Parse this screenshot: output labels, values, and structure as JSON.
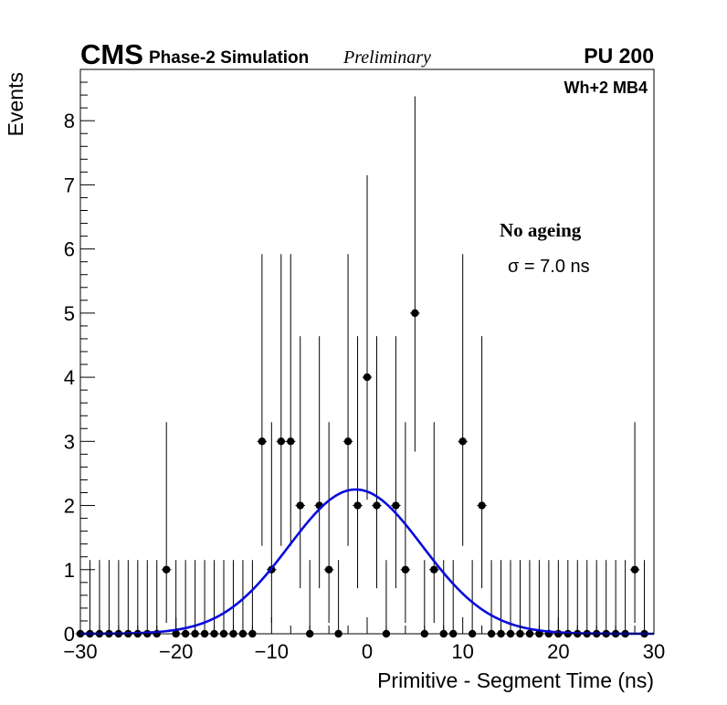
{
  "header": {
    "experiment": "CMS",
    "simulation": "Phase-2 Simulation",
    "status": "Preliminary",
    "pileup": "PU 200"
  },
  "annotations": {
    "chamber": "Wh+2 MB4",
    "condition": "No ageing",
    "sigma": "σ = 7.0 ns"
  },
  "colors": {
    "fit": "#0a0adc",
    "markers": "#000000",
    "axes": "#000000"
  },
  "chart_data": {
    "type": "scatter",
    "xlabel": "Primitive - Segment Time (ns)",
    "ylabel": "Events",
    "xlim": [
      -30,
      30
    ],
    "ylim": [
      0,
      8.8
    ],
    "x_ticks": [
      -30,
      -20,
      -10,
      0,
      10,
      20,
      30
    ],
    "x_tick_labels": [
      "−30",
      "−20",
      "−10",
      "0",
      "10",
      "20",
      "30"
    ],
    "y_ticks": [
      0,
      1,
      2,
      3,
      4,
      5,
      6,
      7,
      8
    ],
    "y_tick_labels": [
      "0",
      "1",
      "2",
      "3",
      "4",
      "5",
      "6",
      "7",
      "8"
    ],
    "grid": false,
    "bin_width": 1,
    "series": [
      {
        "type": "histogram-points",
        "x": [
          -30,
          -29,
          -28,
          -27,
          -26,
          -25,
          -24,
          -23,
          -22,
          -21,
          -20,
          -19,
          -18,
          -17,
          -16,
          -15,
          -14,
          -13,
          -12,
          -11,
          -10,
          -9,
          -8,
          -7,
          -6,
          -5,
          -4,
          -3,
          -2,
          -1,
          0,
          1,
          2,
          3,
          4,
          5,
          6,
          7,
          8,
          9,
          10,
          11,
          12,
          13,
          14,
          15,
          16,
          17,
          18,
          19,
          20,
          21,
          22,
          23,
          24,
          25,
          26,
          27,
          28,
          29
        ],
        "values": [
          0,
          0,
          0,
          0,
          0,
          0,
          0,
          0,
          0,
          1,
          0,
          0,
          0,
          0,
          0,
          0,
          0,
          0,
          0,
          3,
          1,
          3,
          3,
          2,
          0,
          2,
          1,
          0,
          3,
          2,
          4,
          2,
          0,
          2,
          1,
          5,
          0,
          1,
          0,
          0,
          3,
          0,
          2,
          0,
          0,
          0,
          0,
          0,
          0,
          0,
          0,
          0,
          0,
          0,
          0,
          0,
          0,
          0,
          1,
          0
        ],
        "error_up": [
          1.15,
          1.15,
          1.15,
          1.15,
          1.15,
          1.15,
          1.15,
          1.15,
          1.15,
          2.3,
          1.15,
          1.15,
          1.15,
          1.15,
          1.15,
          1.15,
          1.15,
          1.15,
          1.15,
          2.92,
          2.3,
          2.92,
          2.92,
          2.64,
          1.15,
          2.64,
          2.3,
          1.15,
          2.92,
          2.64,
          3.15,
          2.64,
          1.15,
          2.64,
          2.3,
          3.38,
          1.15,
          2.3,
          1.15,
          1.15,
          2.92,
          1.15,
          2.64,
          1.15,
          1.15,
          1.15,
          1.15,
          1.15,
          1.15,
          1.15,
          1.15,
          1.15,
          1.15,
          1.15,
          1.15,
          1.15,
          1.15,
          1.15,
          2.3,
          1.15
        ],
        "error_down": [
          0,
          0,
          0,
          0,
          0,
          0,
          0,
          0,
          0,
          0.83,
          0,
          0,
          0,
          0,
          0,
          0,
          0,
          0,
          0,
          1.63,
          0.83,
          1.63,
          1.63,
          1.29,
          0,
          1.29,
          0.83,
          0,
          1.63,
          1.29,
          1.91,
          1.29,
          0,
          1.29,
          0.83,
          2.16,
          0,
          0.83,
          0,
          0,
          1.63,
          0,
          1.29,
          0,
          0,
          0,
          0,
          0,
          0,
          0,
          0,
          0,
          0,
          0,
          0,
          0,
          0,
          0,
          0.83,
          0
        ]
      },
      {
        "type": "gaussian-fit",
        "amplitude": 2.25,
        "mean": -1.2,
        "sigma": 7.0
      }
    ]
  }
}
